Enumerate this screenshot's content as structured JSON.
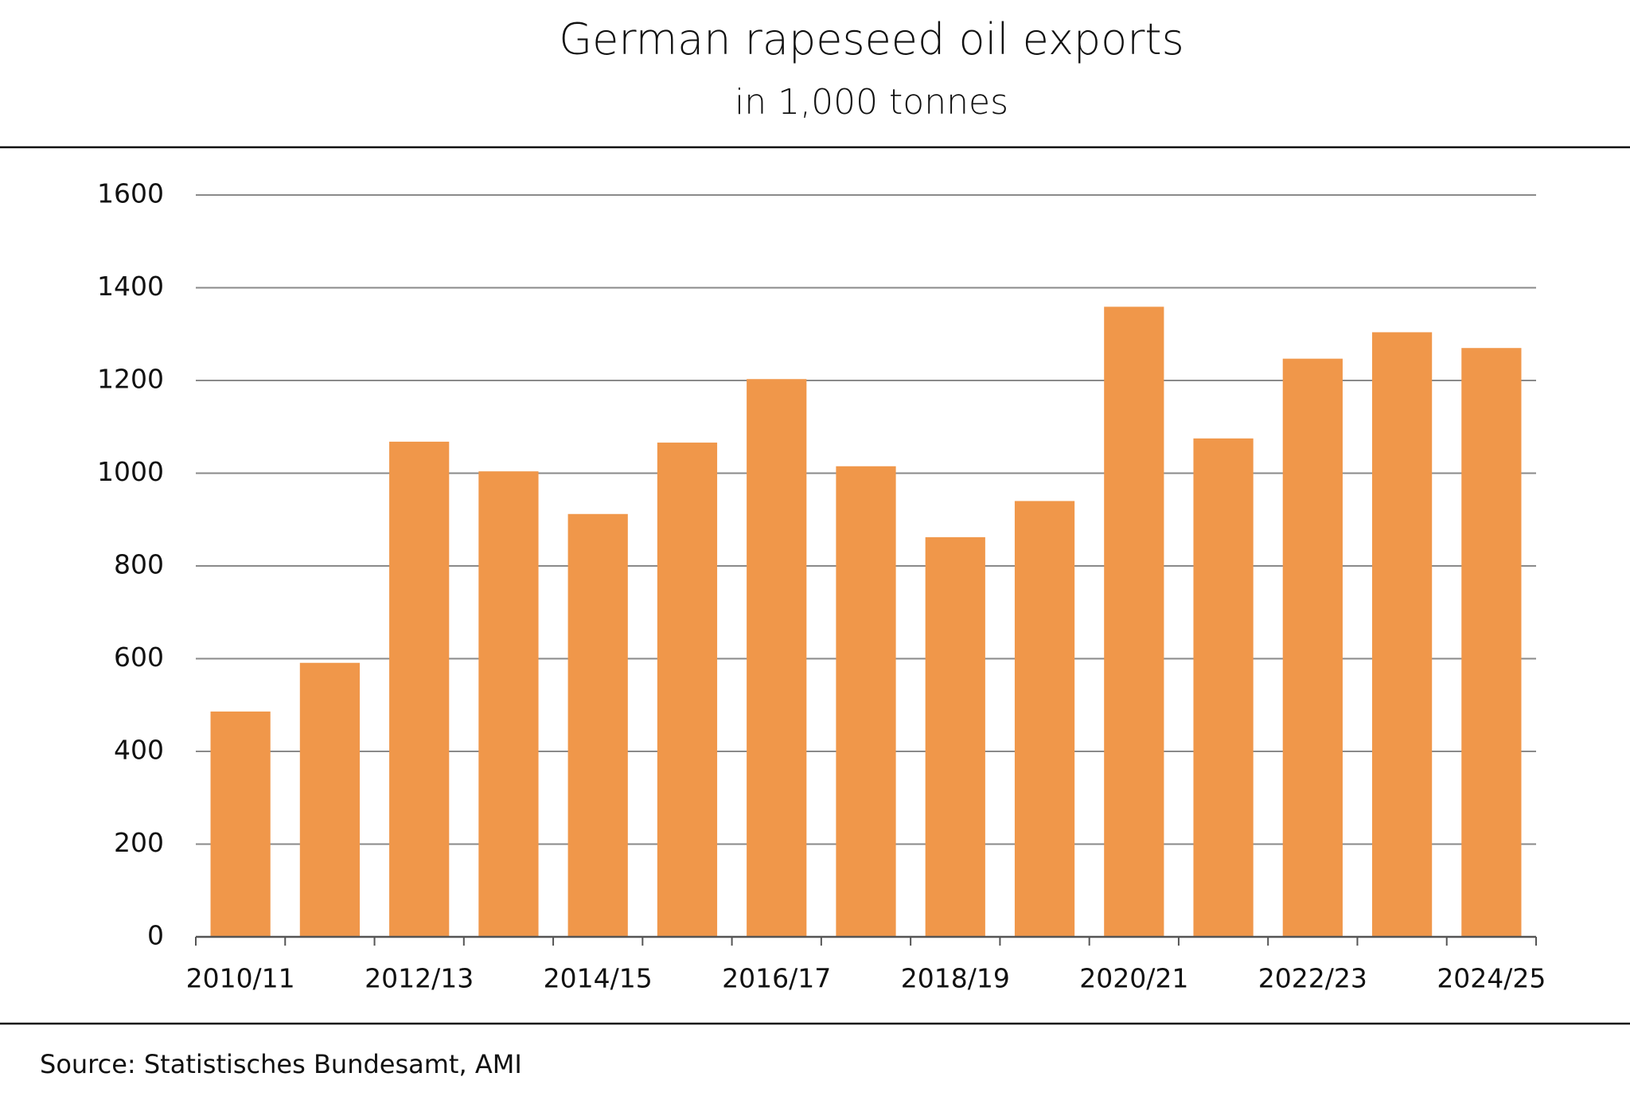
{
  "chart_data": {
    "type": "bar",
    "title": "German rapeseed oil exports",
    "subtitle": "in 1,000 tonnes",
    "source": "Source: Statistisches Bundesamt, AMI",
    "categories": [
      "2010/11",
      null,
      "2012/13",
      null,
      "2014/15",
      null,
      "2016/17",
      null,
      "2018/19",
      null,
      "2020/21",
      null,
      "2022/23",
      null,
      "2024/25"
    ],
    "values": [
      486,
      591,
      1068,
      1004,
      912,
      1066,
      1203,
      1015,
      862,
      940,
      1359,
      1075,
      1247,
      1304,
      1270
    ],
    "color": "#f0974a",
    "ylim": [
      0,
      1600
    ],
    "yticks": [
      0,
      200,
      400,
      600,
      800,
      1000,
      1200,
      1400,
      1600
    ],
    "grid": true
  }
}
